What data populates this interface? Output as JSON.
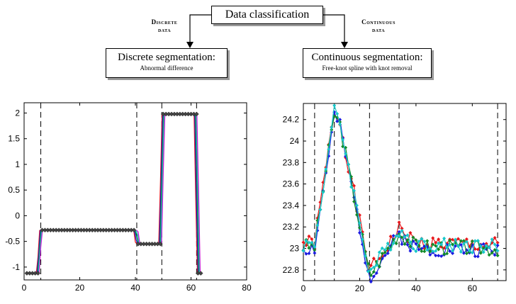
{
  "flowchart": {
    "root": "Data classification",
    "left_edge_label_1": "Discrete",
    "left_edge_label_2": "data",
    "right_edge_label_1": "Continuous",
    "right_edge_label_2": "data",
    "left_box_title": "Discrete segmentation:",
    "left_box_subtitle": "Abnormal difference",
    "right_box_title": "Continuous segmentation:",
    "right_box_subtitle": "Free-knot spline with knot removal"
  },
  "colors": {
    "red": "#e8161a",
    "blue": "#1a1ae0",
    "green": "#128a28",
    "cyan": "#17c7c9",
    "magenta": "#c81ad2",
    "black": "#202020"
  },
  "chart_data": [
    {
      "type": "line",
      "xlim": [
        0,
        80
      ],
      "ylim": [
        -1.25,
        2.2
      ],
      "xticks": [
        0,
        20,
        40,
        60,
        80
      ],
      "yticks": [
        -1,
        -0.5,
        0,
        0.5,
        1,
        1.5,
        2
      ],
      "xtick_labels": [
        "0",
        "20",
        "40",
        "60",
        "80"
      ],
      "ytick_labels": [
        "-1",
        "-0.5",
        "0",
        "0.5",
        "1",
        "1.5",
        "2"
      ],
      "breakpoints": [
        6,
        40.5,
        49.5,
        62
      ],
      "segments": [
        {
          "x0": 1,
          "x1": 5,
          "y": -1.12
        },
        {
          "x0": 6.5,
          "x1": 40,
          "y": -0.28
        },
        {
          "x0": 41,
          "x1": 49,
          "y": -0.55
        },
        {
          "x0": 50,
          "x1": 62,
          "y": 1.98
        },
        {
          "x0": 62.5,
          "x1": 64,
          "y": -1.12
        }
      ]
    },
    {
      "type": "line",
      "xlim": [
        0,
        72
      ],
      "ylim": [
        22.7,
        24.35
      ],
      "xticks": [
        0,
        20,
        40,
        60
      ],
      "yticks": [
        22.8,
        23,
        23.2,
        23.4,
        23.6,
        23.8,
        24,
        24.2
      ],
      "xtick_labels": [
        "0",
        "20",
        "40",
        "60"
      ],
      "ytick_labels": [
        "22.8",
        "23",
        "23.2",
        "23.4",
        "23.6",
        "23.8",
        "24",
        "24.2"
      ],
      "breakpoints": [
        4,
        11,
        23.5,
        34,
        69
      ],
      "series": [
        {
          "name": "red",
          "color": "#e8161a",
          "offset": 0.03,
          "seed": 1
        },
        {
          "name": "blue",
          "color": "#1a1ae0",
          "offset": -0.02,
          "seed": 2
        },
        {
          "name": "green",
          "color": "#128a28",
          "offset": 0.0,
          "seed": 3
        },
        {
          "name": "cyan",
          "color": "#17c7c9",
          "offset": 0.02,
          "seed": 4
        }
      ]
    }
  ]
}
